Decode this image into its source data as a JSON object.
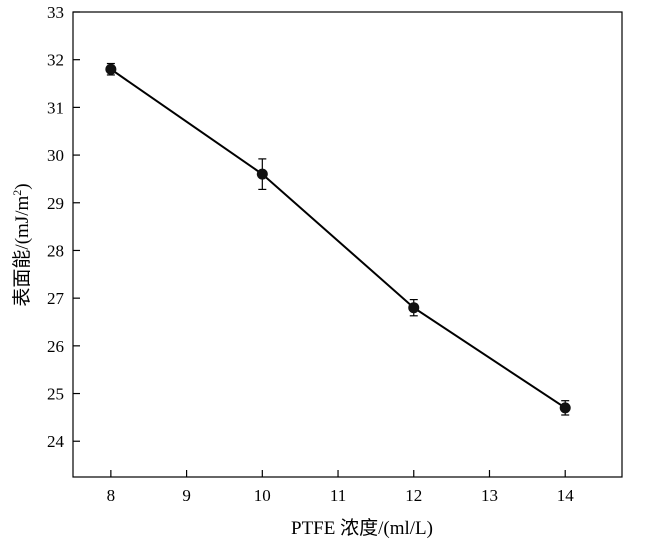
{
  "chart_data": {
    "type": "line",
    "title": "",
    "xlabel": "PTFE 浓度/(ml/L)",
    "ylabel_main": "表面能/(mJ/m",
    "ylabel_sup": "2",
    "ylabel_close": ")",
    "xlim": [
      7.5,
      14.75
    ],
    "ylim": [
      23.25,
      33
    ],
    "xticks": [
      8,
      9,
      10,
      11,
      12,
      13,
      14
    ],
    "yticks": [
      24,
      25,
      26,
      27,
      28,
      29,
      30,
      31,
      32,
      33
    ],
    "grid": false,
    "legend": "none",
    "line_color": "#000000",
    "series": [
      {
        "x": [
          8,
          10,
          12,
          14
        ],
        "y": [
          31.8,
          29.6,
          26.8,
          24.7
        ],
        "error": [
          0.12,
          0.32,
          0.17,
          0.15
        ]
      }
    ]
  }
}
